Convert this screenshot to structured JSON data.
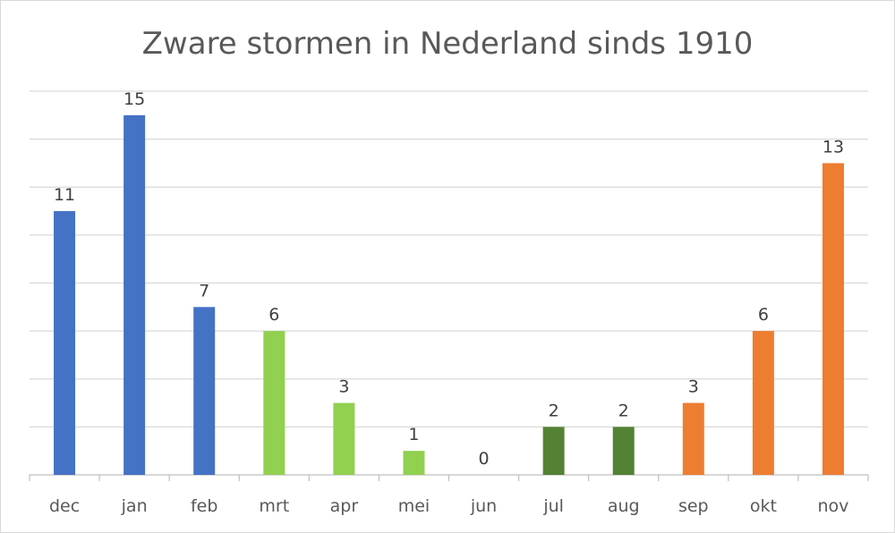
{
  "chart_data": {
    "type": "bar",
    "title": "Zware stormen in Nederland sinds 1910",
    "xlabel": "",
    "ylabel": "",
    "categories": [
      "dec",
      "jan",
      "feb",
      "mrt",
      "apr",
      "mei",
      "jun",
      "jul",
      "aug",
      "sep",
      "okt",
      "nov"
    ],
    "values": [
      11,
      15,
      7,
      6,
      3,
      1,
      0,
      2,
      2,
      3,
      6,
      13
    ],
    "bar_colors": [
      "#4472c4",
      "#4472c4",
      "#4472c4",
      "#92d050",
      "#92d050",
      "#92d050",
      "#92d050",
      "#548235",
      "#548235",
      "#ed7d31",
      "#ed7d31",
      "#ed7d31"
    ],
    "ylim": [
      0,
      16
    ],
    "y_gridline_step": 2,
    "y_tick_labels_shown": false,
    "data_labels": true,
    "grid": true,
    "legend": "none"
  }
}
